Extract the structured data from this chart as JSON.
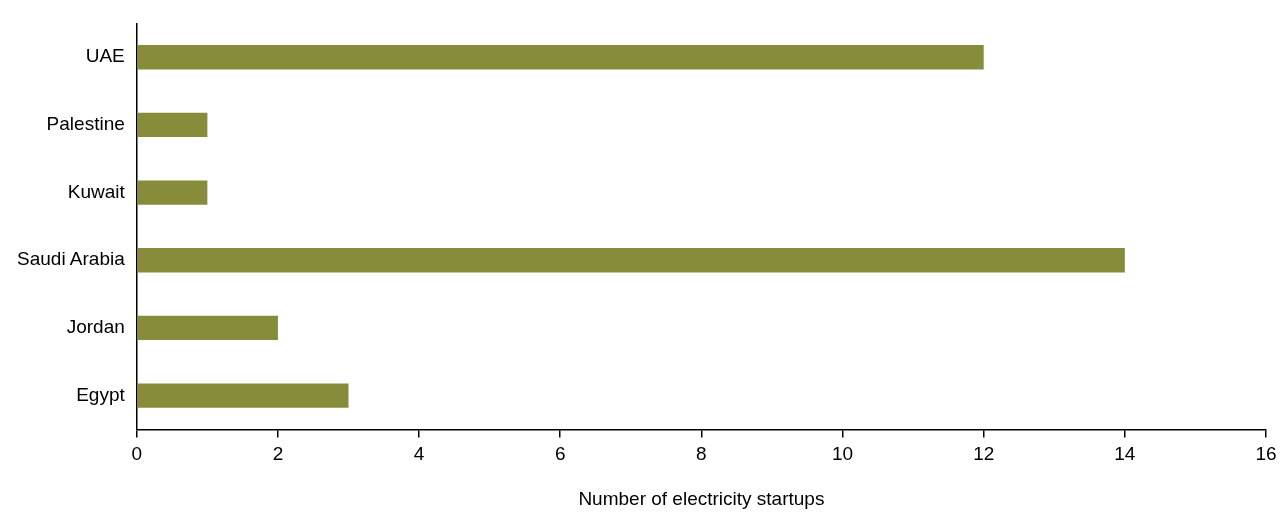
{
  "chart_data": {
    "type": "bar",
    "orientation": "horizontal",
    "xlabel": "Number of electricity startups",
    "categories": [
      "UAE",
      "Palestine",
      "Kuwait",
      "Saudi Arabia",
      "Jordan",
      "Egypt"
    ],
    "values": [
      12,
      1,
      1,
      14,
      2,
      3
    ],
    "color": "#878c3a",
    "xlim": [
      0,
      16
    ],
    "xticks": [
      0,
      2,
      4,
      6,
      8,
      10,
      12,
      14,
      16
    ],
    "legend": false
  }
}
